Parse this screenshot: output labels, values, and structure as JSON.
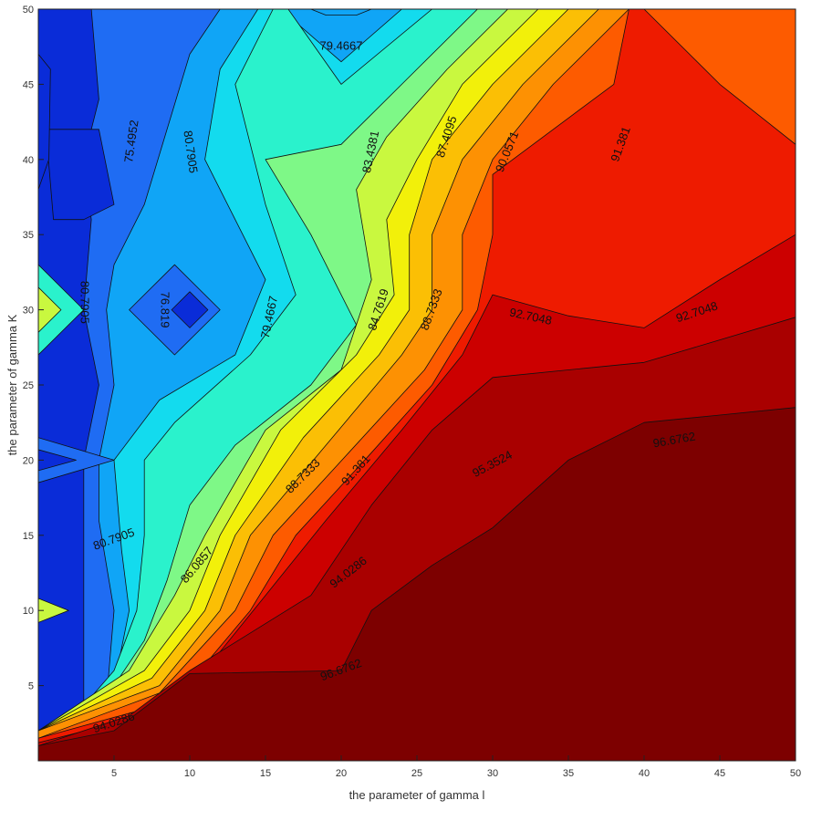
{
  "chart_data": {
    "type": "contour",
    "title": "",
    "xlabel": "the parameter of gamma l",
    "ylabel": "the parameter of gamma K",
    "xlim": [
      0,
      50
    ],
    "ylim": [
      0,
      50
    ],
    "xticks": [
      5,
      10,
      15,
      20,
      25,
      30,
      35,
      40,
      45,
      50
    ],
    "yticks": [
      5,
      10,
      15,
      20,
      25,
      30,
      35,
      40,
      45,
      50
    ],
    "colormap": "jet",
    "grid": false,
    "legend": "none",
    "levels": [
      {
        "value": 75.4952,
        "color": "#0a2cd8"
      },
      {
        "value": 76.819,
        "color": "#1f6cf3"
      },
      {
        "value": 79.4667,
        "color": "#10a5f6"
      },
      {
        "value": 80.7905,
        "color": "#13dbee"
      },
      {
        "value": 83.4381,
        "color": "#2af2cc"
      },
      {
        "value": 84.7619,
        "color": "#7ef887"
      },
      {
        "value": 86.0857,
        "color": "#c9f83f"
      },
      {
        "value": 87.4095,
        "color": "#f2f00a"
      },
      {
        "value": 88.7333,
        "color": "#fbbf05"
      },
      {
        "value": 90.0571,
        "color": "#fd9103"
      },
      {
        "value": 91.381,
        "color": "#fd5b00"
      },
      {
        "value": 92.7048,
        "color": "#ee1b00"
      },
      {
        "value": 94.0286,
        "color": "#cc0000"
      },
      {
        "value": 95.3524,
        "color": "#a90000"
      },
      {
        "value": 96.6762,
        "color": "#7d0000"
      }
    ],
    "contour_labels": [
      {
        "text": "79.4667",
        "x": 20,
        "y": 47.5,
        "angle": 0
      },
      {
        "text": "75.4952",
        "x": 6.2,
        "y": 41.2,
        "angle": -82
      },
      {
        "text": "80.7905",
        "x": 10.0,
        "y": 40.5,
        "angle": 82
      },
      {
        "text": "83.4381",
        "x": 22.0,
        "y": 40.5,
        "angle": -78
      },
      {
        "text": "87.4095",
        "x": 27.0,
        "y": 41.5,
        "angle": -72
      },
      {
        "text": "90.0571",
        "x": 31.0,
        "y": 40.5,
        "angle": -68
      },
      {
        "text": "91.381",
        "x": 38.5,
        "y": 41.0,
        "angle": -70
      },
      {
        "text": "80.7905",
        "x": 3.0,
        "y": 30.5,
        "angle": 90
      },
      {
        "text": "76.819",
        "x": 8.3,
        "y": 30.0,
        "angle": 90
      },
      {
        "text": "79.4667",
        "x": 15.3,
        "y": 29.5,
        "angle": -78
      },
      {
        "text": "84.7619",
        "x": 22.5,
        "y": 30.0,
        "angle": -72
      },
      {
        "text": "88.7333",
        "x": 26.0,
        "y": 30.0,
        "angle": -70
      },
      {
        "text": "92.7048",
        "x": 32.5,
        "y": 29.5,
        "angle": 12
      },
      {
        "text": "92.7048",
        "x": 43.5,
        "y": 29.8,
        "angle": -18
      },
      {
        "text": "96.6762",
        "x": 42.0,
        "y": 21.3,
        "angle": -10
      },
      {
        "text": "95.3524",
        "x": 30.0,
        "y": 19.7,
        "angle": -28
      },
      {
        "text": "91.381",
        "x": 21.0,
        "y": 19.3,
        "angle": -48
      },
      {
        "text": "88.7333",
        "x": 17.5,
        "y": 18.9,
        "angle": -45
      },
      {
        "text": "80.7905",
        "x": 5.0,
        "y": 14.7,
        "angle": -20
      },
      {
        "text": "86.0857",
        "x": 10.5,
        "y": 13.0,
        "angle": -50
      },
      {
        "text": "94.0286",
        "x": 20.5,
        "y": 12.5,
        "angle": -38
      },
      {
        "text": "96.6762",
        "x": 20.0,
        "y": 6.0,
        "angle": -20
      },
      {
        "text": "94.0286",
        "x": 5.0,
        "y": 2.5,
        "angle": -18
      }
    ]
  }
}
